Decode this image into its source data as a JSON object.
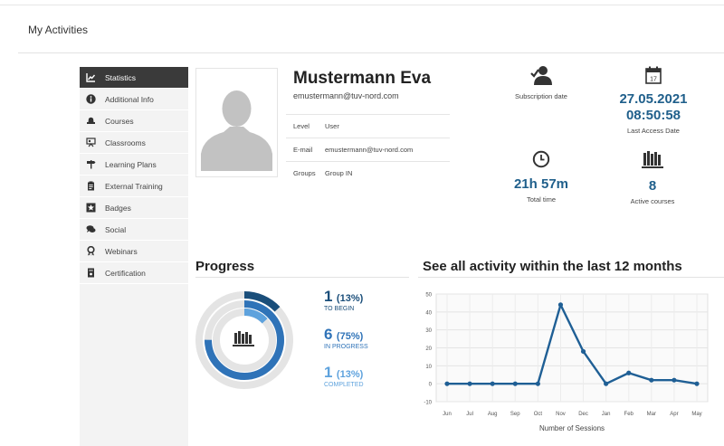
{
  "page": {
    "title": "My Activities"
  },
  "sidebar": {
    "items": [
      {
        "label": "Statistics",
        "icon": "chart-icon",
        "active": true
      },
      {
        "label": "Additional Info",
        "icon": "info-icon",
        "active": false
      },
      {
        "label": "Courses",
        "icon": "courses-icon",
        "active": false
      },
      {
        "label": "Classrooms",
        "icon": "classroom-icon",
        "active": false
      },
      {
        "label": "Learning Plans",
        "icon": "signpost-icon",
        "active": false
      },
      {
        "label": "External Training",
        "icon": "clipboard-icon",
        "active": false
      },
      {
        "label": "Badges",
        "icon": "star-icon",
        "active": false
      },
      {
        "label": "Social",
        "icon": "chat-icon",
        "active": false
      },
      {
        "label": "Webinars",
        "icon": "ribbon-icon",
        "active": false
      },
      {
        "label": "Certification",
        "icon": "certificate-icon",
        "active": false
      }
    ]
  },
  "profile": {
    "name": "Mustermann Eva",
    "email": "emustermann@tuv-nord.com",
    "rows": [
      {
        "key": "Level",
        "value": "User"
      },
      {
        "key": "E-mail",
        "value": "emustermann@tuv-nord.com"
      },
      {
        "key": "Groups",
        "value": "Group IN"
      }
    ]
  },
  "stats": {
    "subscription_label": "Subscription date",
    "last_access_date": "27.05.2021",
    "last_access_time": "08:50:58",
    "last_access_label": "Last Access Date",
    "total_time": "21h 57m",
    "total_time_label": "Total time",
    "active_courses": "8",
    "active_courses_label": "Active courses"
  },
  "progress": {
    "title": "Progress",
    "items": [
      {
        "count": "1",
        "percent": "(13%)",
        "label": "TO BEGIN",
        "color": "#1a4e7a",
        "fraction": 0.13
      },
      {
        "count": "6",
        "percent": "(75%)",
        "label": "IN PROGRESS",
        "color": "#2f73b8",
        "fraction": 0.75
      },
      {
        "count": "1",
        "percent": "(13%)",
        "label": "COMPLETED",
        "color": "#5ea2dd",
        "fraction": 0.13
      }
    ]
  },
  "activity": {
    "title": "See all activity within the last 12 months"
  },
  "chart_data": {
    "type": "line",
    "categories": [
      "Jun",
      "Jul",
      "Aug",
      "Sep",
      "Oct",
      "Nov",
      "Dec",
      "Jan",
      "Feb",
      "Mar",
      "Apr",
      "May"
    ],
    "series": [
      {
        "values": [
          0,
          0,
          0,
          0,
          0,
          44,
          18,
          0,
          6,
          2,
          2,
          0
        ],
        "color": "#1f5f95"
      }
    ],
    "xlabel": "Number of Sessions",
    "ylabel": "",
    "yticks": [
      -10,
      0,
      10,
      20,
      30,
      40,
      50
    ],
    "ylim": [
      -10,
      50
    ],
    "grid": true
  }
}
